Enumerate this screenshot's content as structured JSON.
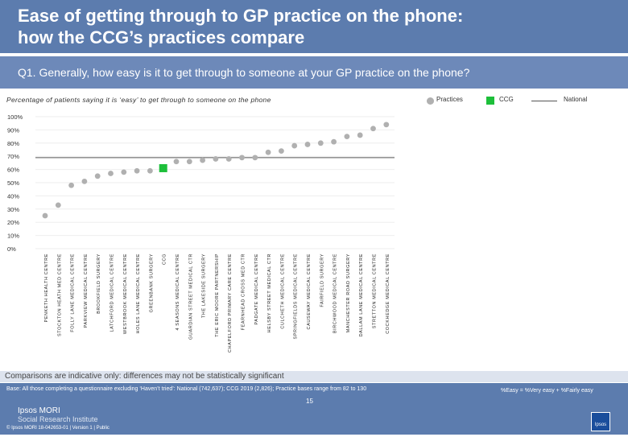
{
  "header": {
    "title_line1": "Ease of getting through to GP practice on the phone:",
    "title_line2": "how the CCG’s practices compare"
  },
  "question": "Q1. Generally, how easy is it to get through to someone at your GP practice on the phone?",
  "subtitle": "Percentage of patients saying it is ‘easy’ to get through to someone on the phone",
  "legend": {
    "practices": "Practices",
    "ccg": "CCG",
    "national": "National"
  },
  "colors": {
    "practice": "#b0b0b0",
    "ccg": "#1dbf3a",
    "national": "#555555"
  },
  "chart_data": {
    "type": "scatter",
    "ylim": [
      0,
      100
    ],
    "yticks": [
      0,
      10,
      20,
      30,
      40,
      50,
      60,
      70,
      80,
      90,
      100
    ],
    "ytick_labels": [
      "0%",
      "10%",
      "20%",
      "30%",
      "40%",
      "50%",
      "60%",
      "70%",
      "80%",
      "90%",
      "100%"
    ],
    "national": 69,
    "categories": [
      "PENKETH HEALTH CENTRE",
      "STOCKTON HEATH MED CENTRE",
      "FOLLY LANE MEDICAL CENTRE",
      "PARKVIEW MEDICAL CENTRE",
      "BROOKFIELD SURGERY",
      "LATCHFORD MEDICAL CENTRE",
      "WESTBROOK MEDICAL CENTRE",
      "HOLES LANE MEDICAL CENTRE",
      "GREENBANK SURGERY",
      "CCG",
      "4 SEASONS MEDICAL CENTRE",
      "GUARDIAN STREET MEDICAL CTR",
      "THE LAKESIDE SURGERY",
      "THE ERIC MOORE PARTNERSHIP",
      "CHAPELFORD PRIMARY CARE CENTRE",
      "FEARNHEAD CROSS MED CTR",
      "PADGATE MEDICAL CENTRE",
      "HELSBY STREET MEDICAL CTR",
      "CULCHETH MEDICAL CENTRE",
      "SPRINGFIELDS MEDICAL CENTRE",
      "CAUSEWAY MEDICAL CENTRE",
      "FAIRFIELD SURGERY",
      "BIRCHWOOD MEDICAL CENTRE",
      "MANCHESTER ROAD SURGERY",
      "DALLAM LANE MEDICAL CENTRE",
      "STRETTON MEDICAL CENTRE",
      "COCKHEDGE MEDICAL CENTRE"
    ],
    "values": [
      25,
      33,
      48,
      51,
      55,
      57,
      58,
      59,
      59,
      61,
      66,
      66,
      67,
      68,
      68,
      69,
      69,
      73,
      74,
      78,
      79,
      80,
      81,
      85,
      86,
      91,
      94
    ],
    "ccg_index": 9
  },
  "footer": {
    "disclaimer": "Comparisons are indicative only: differences may not be statistically significant",
    "base": "Base: All those completing a questionnaire excluding ‘Haven’t tried’: National (742,637); CCG 2019 (2,826); Practice bases range from 82 to 130",
    "definition": "%Easy = %Very easy + %Fairly easy",
    "logo_line1": "Ipsos MORI",
    "logo_line2": "Social Research Institute",
    "copyright": "© Ipsos MORI     18-042653-01 | Version 1 | Public",
    "page_number": "15",
    "brand": "Ipsos"
  }
}
